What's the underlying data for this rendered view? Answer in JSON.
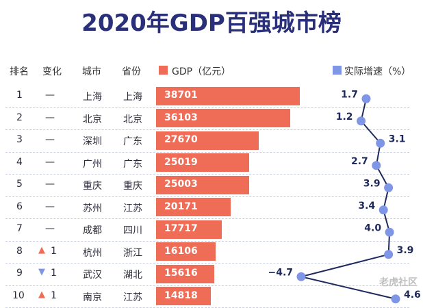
{
  "title": "2020年GDP百强城市榜",
  "headers": {
    "rank": "排名",
    "change": "变化",
    "city": "城市",
    "province": "省份",
    "gdp": "GDP（亿元）",
    "growth": "实际增速（%）"
  },
  "colors": {
    "bar": "#ef6c57",
    "growth": "#7f95e6",
    "up": "#ef6c57",
    "down": "#7f95e6"
  },
  "rows": [
    {
      "rank": "1",
      "change": "—",
      "city": "上海",
      "province": "上海",
      "gdp": "38701",
      "growth": "1.7"
    },
    {
      "rank": "2",
      "change": "—",
      "city": "北京",
      "province": "北京",
      "gdp": "36103",
      "growth": "1.2"
    },
    {
      "rank": "3",
      "change": "—",
      "city": "深圳",
      "province": "广东",
      "gdp": "27670",
      "growth": "3.1"
    },
    {
      "rank": "4",
      "change": "—",
      "city": "广州",
      "province": "广东",
      "gdp": "25019",
      "growth": "2.7"
    },
    {
      "rank": "5",
      "change": "—",
      "city": "重庆",
      "province": "重庆",
      "gdp": "25003",
      "growth": "3.9"
    },
    {
      "rank": "6",
      "change": "—",
      "city": "苏州",
      "province": "江苏",
      "gdp": "20171",
      "growth": "3.4"
    },
    {
      "rank": "7",
      "change": "—",
      "city": "成都",
      "province": "四川",
      "gdp": "17717",
      "growth": "4.0"
    },
    {
      "rank": "8",
      "change": "1",
      "dir": "up",
      "city": "杭州",
      "province": "浙江",
      "gdp": "16106",
      "growth": "3.9"
    },
    {
      "rank": "9",
      "change": "1",
      "dir": "down",
      "city": "武汉",
      "province": "湖北",
      "gdp": "15616",
      "growth": "−4.7"
    },
    {
      "rank": "10",
      "change": "1",
      "dir": "up",
      "city": "南京",
      "province": "江苏",
      "gdp": "14818",
      "growth": "4.6"
    }
  ],
  "chart_data": {
    "type": "bar",
    "title": "2020年GDP百强城市榜",
    "categories": [
      "上海",
      "北京",
      "深圳",
      "广州",
      "重庆",
      "苏州",
      "成都",
      "杭州",
      "武汉",
      "南京"
    ],
    "series": [
      {
        "name": "GDP（亿元）",
        "values": [
          38701,
          36103,
          27670,
          25019,
          25003,
          20171,
          17717,
          16106,
          15616,
          14818
        ]
      },
      {
        "name": "实际增速（%）",
        "values": [
          1.7,
          1.2,
          3.1,
          2.7,
          3.9,
          3.4,
          4.0,
          3.9,
          -4.7,
          4.6
        ]
      }
    ],
    "gdp_max": 38701,
    "growth_range": [
      -4.7,
      4.6
    ]
  },
  "watermark": "老虎社区"
}
